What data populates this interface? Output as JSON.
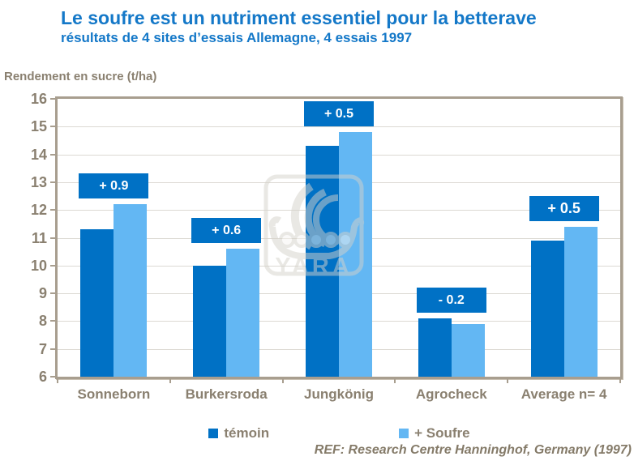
{
  "header": {
    "title": "Le soufre est un nutriment essentiel pour la betterave",
    "subtitle": "résultats de 4 sites d’essais Allemagne, 4 essais 1997"
  },
  "chart_data": {
    "type": "bar",
    "title": "Le soufre est un nutriment essentiel pour la betterave",
    "subtitle": "résultats de 4 sites d’essais Allemagne, 4 essais 1997",
    "ylabel": "Rendement en sucre (t/ha)",
    "xlabel": "",
    "ylim": [
      6,
      16
    ],
    "yticks": [
      16,
      15,
      14,
      13,
      12,
      11,
      10,
      9,
      8,
      7,
      6
    ],
    "grid": true,
    "legend_position": "bottom",
    "categories": [
      "Sonneborn",
      "Burkersroda",
      "Jungkönig",
      "Agrocheck",
      "Average n= 4"
    ],
    "series": [
      {
        "name": "témoin",
        "color": "#0071c5",
        "values": [
          11.3,
          10.0,
          14.3,
          8.1,
          10.9
        ]
      },
      {
        "name": "+ Soufre",
        "color": "#63b7f3",
        "values": [
          12.2,
          10.6,
          14.8,
          7.9,
          11.4
        ]
      }
    ],
    "annotations": [
      "+ 0.9",
      "+ 0.6",
      "+ 0.5",
      "- 0.2",
      "+ 0.5"
    ],
    "annotation_bg": "#0071c5",
    "annotation_text_color": "#ffffff"
  },
  "colors": {
    "title_blue": "#1478c8",
    "axis_text": "#8a8070",
    "frame": "#a89e8f",
    "gridline": "#dcd9d3"
  },
  "watermark": {
    "text": "YARA"
  },
  "footer": {
    "ref": "REF: Research Centre Hanninghof,  Germany (1997)"
  }
}
